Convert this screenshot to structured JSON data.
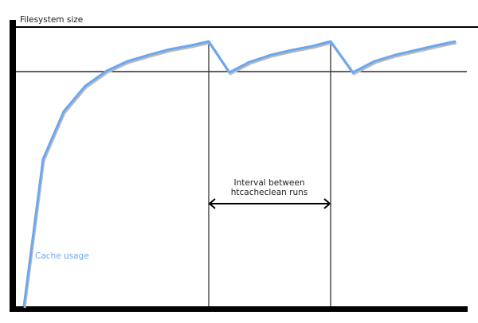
{
  "diagram": {
    "title": "Filesystem size",
    "curve_label": "Cache usage",
    "interval_label_line1": "Interval between",
    "interval_label_line2": "htcacheclean runs",
    "colors": {
      "curve": "#6aa8f0",
      "axes": "#000000",
      "curve_shadow": "#bbbbbb"
    }
  }
}
